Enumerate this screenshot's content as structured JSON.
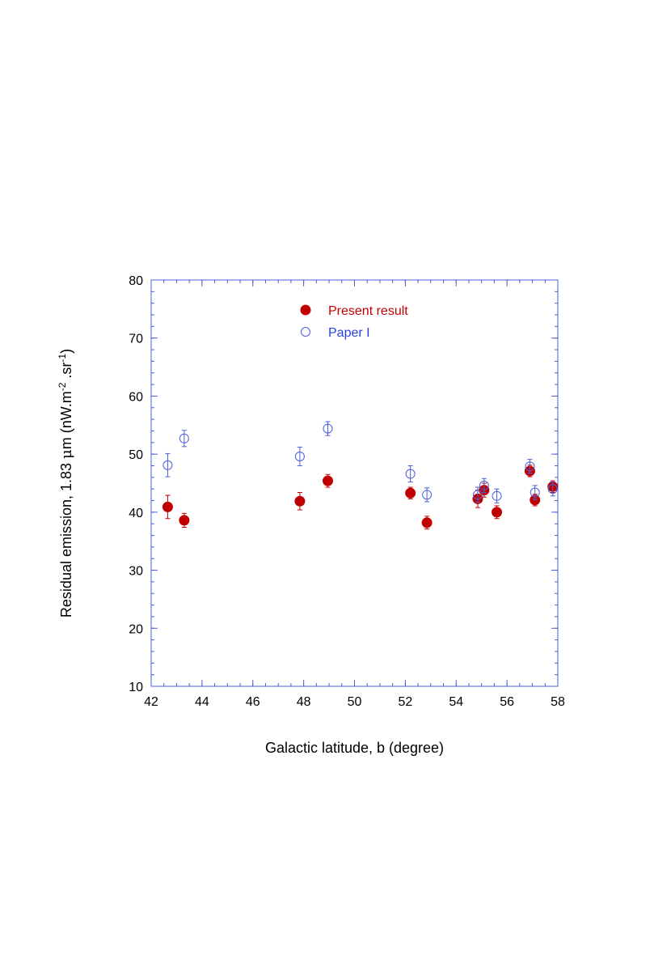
{
  "chart_data": {
    "type": "scatter",
    "title": "",
    "xlabel": "Galactic latitude, b (degree)",
    "ylabel_parts": {
      "prefix": "Residual emission, 1.83 ",
      "mu": "μ",
      "after_mu": "m (nW.m",
      "sup1": "-2",
      "middle": " .sr",
      "sup2": "-1",
      "suffix": ")"
    },
    "xlim": [
      42,
      58
    ],
    "ylim": [
      10,
      80
    ],
    "xticks": [
      "42",
      "44",
      "46",
      "48",
      "50",
      "52",
      "54",
      "56",
      "58"
    ],
    "yticks": [
      "10",
      "20",
      "30",
      "40",
      "50",
      "60",
      "70",
      "80"
    ],
    "grid": false,
    "legend_position": "top-center",
    "series": [
      {
        "name": "Present result",
        "color": "#c00000",
        "marker": "filled-circle",
        "points": [
          {
            "x": 42.65,
            "y": 40.9,
            "err": 2.0
          },
          {
            "x": 43.3,
            "y": 38.6,
            "err": 1.2
          },
          {
            "x": 47.85,
            "y": 41.9,
            "err": 1.5
          },
          {
            "x": 48.95,
            "y": 45.4,
            "err": 1.1
          },
          {
            "x": 52.2,
            "y": 43.3,
            "err": 1.0
          },
          {
            "x": 52.85,
            "y": 38.2,
            "err": 1.1
          },
          {
            "x": 54.85,
            "y": 42.3,
            "err": 1.5
          },
          {
            "x": 55.1,
            "y": 43.8,
            "err": 1.2
          },
          {
            "x": 55.6,
            "y": 40.0,
            "err": 1.1
          },
          {
            "x": 56.9,
            "y": 47.1,
            "err": 1.0
          },
          {
            "x": 57.1,
            "y": 42.1,
            "err": 1.0
          },
          {
            "x": 57.8,
            "y": 44.4,
            "err": 1.0
          }
        ]
      },
      {
        "name": "Paper I",
        "color": "#4a5fd8",
        "marker": "open-circle",
        "points": [
          {
            "x": 42.65,
            "y": 48.1,
            "err": 2.0
          },
          {
            "x": 43.3,
            "y": 52.7,
            "err": 1.4
          },
          {
            "x": 47.85,
            "y": 49.6,
            "err": 1.6
          },
          {
            "x": 48.95,
            "y": 54.4,
            "err": 1.2
          },
          {
            "x": 52.2,
            "y": 46.6,
            "err": 1.4
          },
          {
            "x": 52.85,
            "y": 43.0,
            "err": 1.2
          },
          {
            "x": 54.85,
            "y": 43.0,
            "err": 1.3
          },
          {
            "x": 55.1,
            "y": 44.6,
            "err": 1.2
          },
          {
            "x": 55.6,
            "y": 42.8,
            "err": 1.2
          },
          {
            "x": 56.9,
            "y": 47.9,
            "err": 1.2
          },
          {
            "x": 57.1,
            "y": 43.4,
            "err": 1.2
          },
          {
            "x": 57.8,
            "y": 44.0,
            "err": 1.2
          }
        ]
      }
    ]
  }
}
